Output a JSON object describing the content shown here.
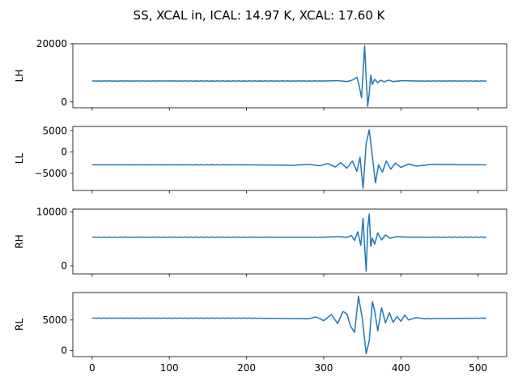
{
  "title": "SS, XCAL in, ICAL: 14.97 K, XCAL: 17.60 K",
  "colors": {
    "line": "#1f77b4",
    "axes": "#000000",
    "background": "#ffffff"
  },
  "chart_data": [
    {
      "type": "line",
      "ylabel": "LH",
      "xlim": [
        -25,
        537
      ],
      "ylim": [
        -2000,
        20000
      ],
      "xticks": [
        0,
        100,
        200,
        300,
        400,
        500
      ],
      "yticks": [
        0,
        20000
      ],
      "show_xticklabels": false,
      "grid": false,
      "series": [
        {
          "baseline": 7200,
          "x": [
            0,
            50,
            300,
            320,
            330,
            338,
            343,
            346,
            349,
            351,
            353,
            355,
            357,
            359,
            361,
            363,
            366,
            370,
            374,
            378,
            384,
            390,
            400,
            420,
            450,
            511
          ],
          "y": [
            7200,
            7200,
            7200,
            7300,
            7000,
            7600,
            8500,
            5500,
            1500,
            10000,
            19300,
            8000,
            -1500,
            3000,
            9200,
            6000,
            7800,
            6600,
            7500,
            6900,
            7500,
            7000,
            7300,
            7200,
            7200,
            7200
          ]
        }
      ]
    },
    {
      "type": "line",
      "ylabel": "LL",
      "xlim": [
        -25,
        537
      ],
      "ylim": [
        -9000,
        6000
      ],
      "xticks": [
        0,
        100,
        200,
        300,
        400,
        500
      ],
      "yticks": [
        -5000,
        0,
        5000
      ],
      "show_xticklabels": false,
      "grid": false,
      "series": [
        {
          "baseline": -3000,
          "x": [
            0,
            100,
            200,
            260,
            280,
            295,
            305,
            315,
            322,
            330,
            337,
            343,
            347,
            351,
            355,
            359,
            363,
            367,
            371,
            376,
            381,
            387,
            393,
            400,
            410,
            420,
            440,
            511
          ],
          "y": [
            -3000,
            -3000,
            -3000,
            -3100,
            -2900,
            -3200,
            -2700,
            -3500,
            -2500,
            -3800,
            -2100,
            -4500,
            -1200,
            -8500,
            2000,
            5200,
            -1000,
            -7200,
            -3000,
            -4700,
            -2100,
            -4000,
            -2600,
            -3600,
            -2800,
            -3300,
            -2900,
            -3000
          ]
        }
      ]
    },
    {
      "type": "line",
      "ylabel": "RH",
      "xlim": [
        -25,
        537
      ],
      "ylim": [
        -1500,
        10500
      ],
      "xticks": [
        0,
        100,
        200,
        300,
        400,
        500
      ],
      "yticks": [
        0,
        10000
      ],
      "show_xticklabels": false,
      "grid": false,
      "series": [
        {
          "baseline": 5300,
          "x": [
            0,
            100,
            200,
            300,
            320,
            330,
            336,
            340,
            344,
            348,
            351,
            353,
            355,
            357,
            359,
            361,
            363,
            366,
            370,
            375,
            380,
            386,
            395,
            410,
            511
          ],
          "y": [
            5300,
            5300,
            5300,
            5300,
            5400,
            5250,
            5600,
            4700,
            6300,
            3800,
            8800,
            3500,
            -1000,
            7000,
            9600,
            3600,
            5100,
            4000,
            6100,
            4800,
            5700,
            5100,
            5400,
            5300,
            5300
          ]
        }
      ]
    },
    {
      "type": "line",
      "ylabel": "RL",
      "xlim": [
        -25,
        537
      ],
      "ylim": [
        -1000,
        9500
      ],
      "xticks": [
        0,
        100,
        200,
        300,
        400,
        500
      ],
      "yticks": [
        0,
        5000
      ],
      "show_xticklabels": true,
      "grid": false,
      "series": [
        {
          "baseline": 5300,
          "x": [
            0,
            100,
            200,
            280,
            290,
            300,
            310,
            318,
            325,
            330,
            335,
            340,
            345,
            350,
            355,
            359,
            363,
            366,
            370,
            375,
            380,
            385,
            390,
            395,
            400,
            405,
            410,
            420,
            430,
            511
          ],
          "y": [
            5300,
            5300,
            5300,
            5200,
            5500,
            4900,
            5900,
            4400,
            6400,
            6000,
            3900,
            3000,
            8900,
            5200,
            -500,
            1600,
            8000,
            6500,
            3200,
            7000,
            4500,
            6200,
            4600,
            5600,
            4800,
            5800,
            5000,
            5400,
            5200,
            5300
          ]
        }
      ]
    }
  ]
}
